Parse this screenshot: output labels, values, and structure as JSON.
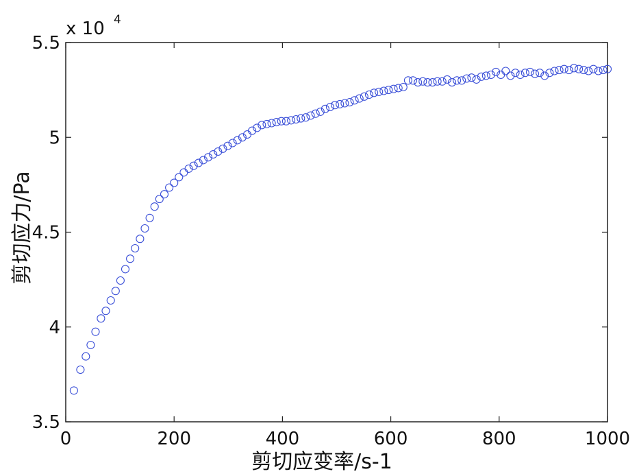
{
  "chart_data": {
    "type": "scatter",
    "xlabel": "剪切应变率/s-1",
    "ylabel": "剪切应力/Pa",
    "exponent": {
      "base": "x 10",
      "power": "4"
    },
    "xlim": [
      0,
      1000
    ],
    "ylim": [
      3.5,
      5.5
    ],
    "xticks": [
      "0",
      "200",
      "400",
      "600",
      "800",
      "1000"
    ],
    "yticks": [
      "3.5",
      "4",
      "4.5",
      "5",
      "5.5"
    ],
    "grid": false,
    "marker": "open-circle",
    "marker_color": "#3a4fd8",
    "series": [
      {
        "points": [
          [
            15,
            3.665
          ],
          [
            27,
            3.775
          ],
          [
            37,
            3.845
          ],
          [
            46,
            3.905
          ],
          [
            55,
            3.975
          ],
          [
            65,
            4.045
          ],
          [
            74,
            4.085
          ],
          [
            83,
            4.14
          ],
          [
            92,
            4.19
          ],
          [
            101,
            4.245
          ],
          [
            110,
            4.305
          ],
          [
            119,
            4.36
          ],
          [
            128,
            4.415
          ],
          [
            137,
            4.465
          ],
          [
            146,
            4.52
          ],
          [
            155,
            4.575
          ],
          [
            164,
            4.635
          ],
          [
            173,
            4.675
          ],
          [
            182,
            4.7
          ],
          [
            191,
            4.735
          ],
          [
            200,
            4.76
          ],
          [
            209,
            4.79
          ],
          [
            218,
            4.815
          ],
          [
            227,
            4.835
          ],
          [
            236,
            4.85
          ],
          [
            245,
            4.865
          ],
          [
            254,
            4.88
          ],
          [
            263,
            4.895
          ],
          [
            272,
            4.91
          ],
          [
            281,
            4.925
          ],
          [
            290,
            4.94
          ],
          [
            299,
            4.955
          ],
          [
            308,
            4.97
          ],
          [
            317,
            4.985
          ],
          [
            326,
            5.0
          ],
          [
            335,
            5.015
          ],
          [
            344,
            5.035
          ],
          [
            353,
            5.05
          ],
          [
            362,
            5.065
          ],
          [
            371,
            5.07
          ],
          [
            380,
            5.075
          ],
          [
            389,
            5.08
          ],
          [
            398,
            5.085
          ],
          [
            407,
            5.085
          ],
          [
            416,
            5.09
          ],
          [
            425,
            5.095
          ],
          [
            434,
            5.1
          ],
          [
            443,
            5.105
          ],
          [
            452,
            5.115
          ],
          [
            461,
            5.125
          ],
          [
            470,
            5.135
          ],
          [
            479,
            5.15
          ],
          [
            488,
            5.16
          ],
          [
            497,
            5.17
          ],
          [
            506,
            5.175
          ],
          [
            515,
            5.18
          ],
          [
            524,
            5.185
          ],
          [
            533,
            5.195
          ],
          [
            542,
            5.205
          ],
          [
            551,
            5.215
          ],
          [
            560,
            5.225
          ],
          [
            569,
            5.235
          ],
          [
            578,
            5.24
          ],
          [
            587,
            5.245
          ],
          [
            596,
            5.25
          ],
          [
            605,
            5.255
          ],
          [
            614,
            5.26
          ],
          [
            623,
            5.265
          ],
          [
            632,
            5.3
          ],
          [
            641,
            5.3
          ],
          [
            650,
            5.29
          ],
          [
            659,
            5.295
          ],
          [
            668,
            5.29
          ],
          [
            677,
            5.29
          ],
          [
            686,
            5.295
          ],
          [
            695,
            5.295
          ],
          [
            704,
            5.305
          ],
          [
            713,
            5.29
          ],
          [
            722,
            5.3
          ],
          [
            731,
            5.3
          ],
          [
            740,
            5.31
          ],
          [
            749,
            5.315
          ],
          [
            758,
            5.305
          ],
          [
            767,
            5.32
          ],
          [
            776,
            5.325
          ],
          [
            785,
            5.33
          ],
          [
            794,
            5.345
          ],
          [
            803,
            5.33
          ],
          [
            812,
            5.35
          ],
          [
            821,
            5.325
          ],
          [
            830,
            5.34
          ],
          [
            839,
            5.33
          ],
          [
            848,
            5.34
          ],
          [
            857,
            5.345
          ],
          [
            866,
            5.335
          ],
          [
            875,
            5.34
          ],
          [
            884,
            5.325
          ],
          [
            893,
            5.34
          ],
          [
            902,
            5.35
          ],
          [
            911,
            5.355
          ],
          [
            920,
            5.36
          ],
          [
            929,
            5.355
          ],
          [
            938,
            5.365
          ],
          [
            947,
            5.36
          ],
          [
            956,
            5.355
          ],
          [
            965,
            5.35
          ],
          [
            974,
            5.36
          ],
          [
            983,
            5.35
          ],
          [
            992,
            5.355
          ],
          [
            1000,
            5.36
          ]
        ]
      }
    ]
  }
}
